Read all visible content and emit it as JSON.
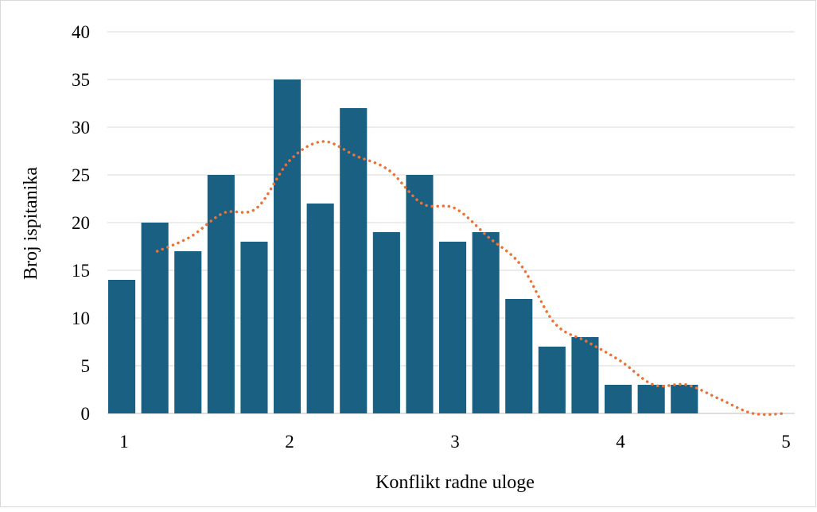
{
  "chart_data": {
    "type": "bar",
    "title": "",
    "xlabel": "Konflikt radne uloge",
    "ylabel": "Broj ispitanika",
    "ylim": [
      0,
      40
    ],
    "yticks": [
      0,
      5,
      10,
      15,
      20,
      25,
      30,
      35,
      40
    ],
    "xlim": [
      1,
      5
    ],
    "xticks": [
      1,
      2,
      3,
      4,
      5
    ],
    "grid": true,
    "legend": "none",
    "bars": {
      "name": "",
      "color": "#1a6083",
      "bin_width": 0.2,
      "x": [
        1.0,
        1.2,
        1.4,
        1.6,
        1.8,
        2.0,
        2.2,
        2.4,
        2.6,
        2.8,
        3.0,
        3.2,
        3.4,
        3.6,
        3.8,
        4.0,
        4.2,
        4.4
      ],
      "values": [
        14,
        20,
        17,
        25,
        18,
        35,
        22,
        32,
        19,
        25,
        18,
        19,
        12,
        7,
        8,
        3,
        3,
        3
      ]
    },
    "trendline": {
      "type": "moving-average",
      "color": "#e8743b",
      "style": "dotted",
      "x": [
        1.2,
        1.4,
        1.6,
        1.8,
        2.0,
        2.2,
        2.4,
        2.6,
        2.8,
        3.0,
        3.2,
        3.4,
        3.6,
        3.8,
        4.0,
        4.2,
        4.4,
        4.6,
        4.8,
        5.0
      ],
      "values": [
        17,
        18.5,
        21,
        21.5,
        26.5,
        28.5,
        27,
        25.5,
        22,
        21.5,
        18.5,
        15.5,
        9.5,
        7.5,
        5.5,
        3,
        3,
        1.5,
        0,
        0
      ]
    }
  }
}
